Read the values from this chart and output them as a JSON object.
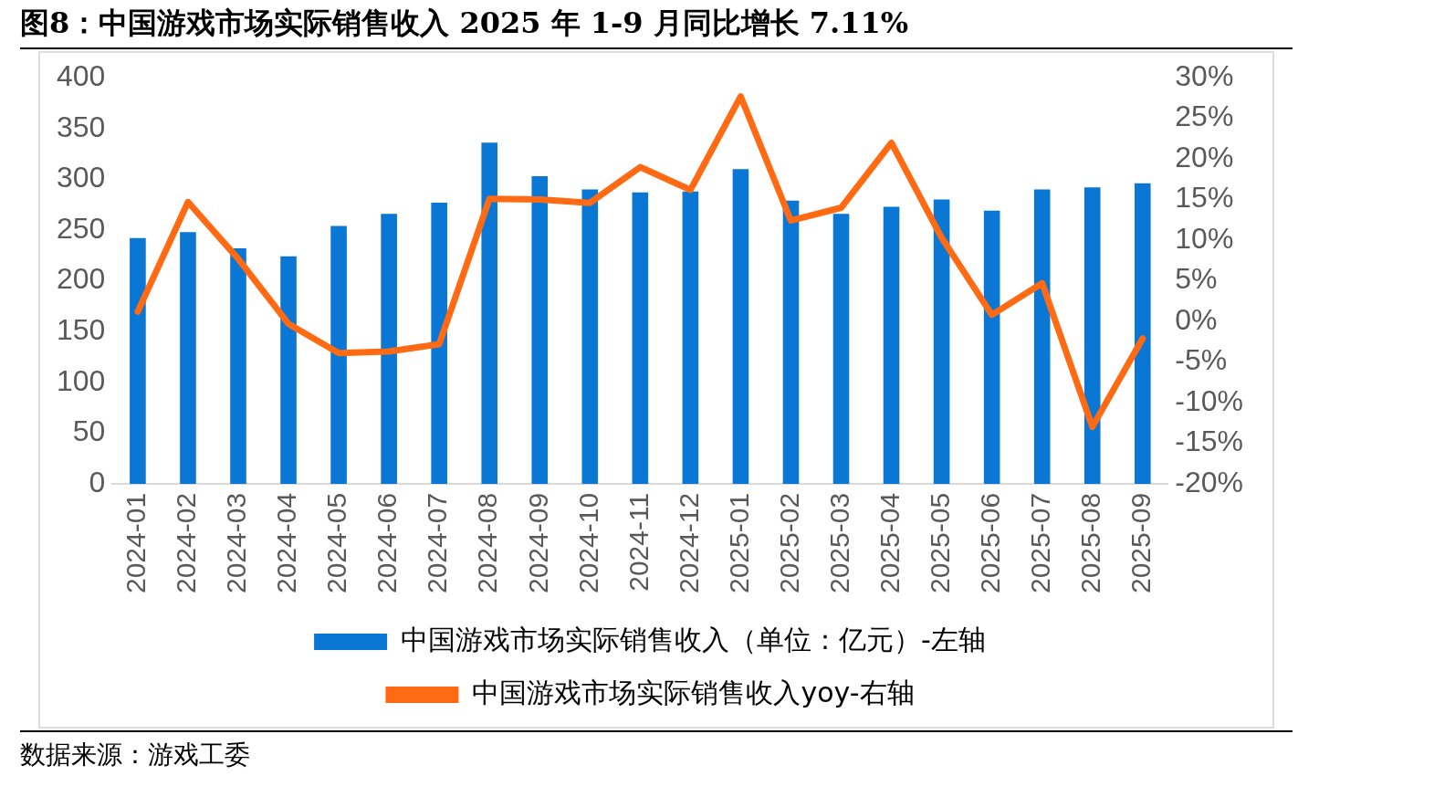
{
  "chart_data": {
    "type": "bar",
    "title": "图8：中国游戏市场实际销售收入 2025 年 1-9 月同比增长 7.11%",
    "annotations": [
      "数据来源：游戏工委"
    ],
    "categories": [
      "2024-01",
      "2024-02",
      "2024-03",
      "2024-04",
      "2024-05",
      "2024-06",
      "2024-07",
      "2024-08",
      "2024-09",
      "2024-10",
      "2024-11",
      "2024-12",
      "2025-01",
      "2025-02",
      "2025-03",
      "2025-04",
      "2025-05",
      "2025-06",
      "2025-07",
      "2025-08",
      "2025-09"
    ],
    "series": [
      {
        "name": "中国游戏市场实际销售收入（单位：亿元）-左轴",
        "color": "#0a77d5",
        "values": [
          242,
          248,
          232,
          224,
          254,
          266,
          277,
          336,
          303,
          290,
          287,
          288,
          310,
          279,
          266,
          273,
          280,
          269,
          290,
          292,
          296
        ]
      },
      {
        "name": "中国游戏市场实际销售收入yoy-右轴",
        "type": "line",
        "axis": "y2",
        "color": "#ff6a13",
        "values": [
          1.2,
          14.7,
          7.7,
          -0.3,
          -3.9,
          -3.7,
          -2.8,
          15.1,
          15.0,
          14.6,
          19.0,
          16.2,
          27.7,
          12.4,
          14.0,
          22.0,
          10.3,
          0.8,
          4.7,
          -13.0,
          -2.1
        ]
      }
    ],
    "ylim": [
      0,
      400
    ],
    "yticks": [
      0,
      50,
      100,
      150,
      200,
      250,
      300,
      350,
      400
    ],
    "y2lim": [
      -20,
      30
    ],
    "y2ticks": [
      {
        "value": -20,
        "label": "-20%"
      },
      {
        "value": -15,
        "label": "-15%"
      },
      {
        "value": -10,
        "label": "-10%"
      },
      {
        "value": -5,
        "label": "-5%"
      },
      {
        "value": 0,
        "label": "0%"
      },
      {
        "value": 5,
        "label": "5%"
      },
      {
        "value": 10,
        "label": "10%"
      },
      {
        "value": 15,
        "label": "15%"
      },
      {
        "value": 20,
        "label": "20%"
      },
      {
        "value": 25,
        "label": "25%"
      },
      {
        "value": 30,
        "label": "30%"
      }
    ],
    "grid": false,
    "legend": "bottom",
    "marker": "none",
    "line_style": "solid"
  }
}
